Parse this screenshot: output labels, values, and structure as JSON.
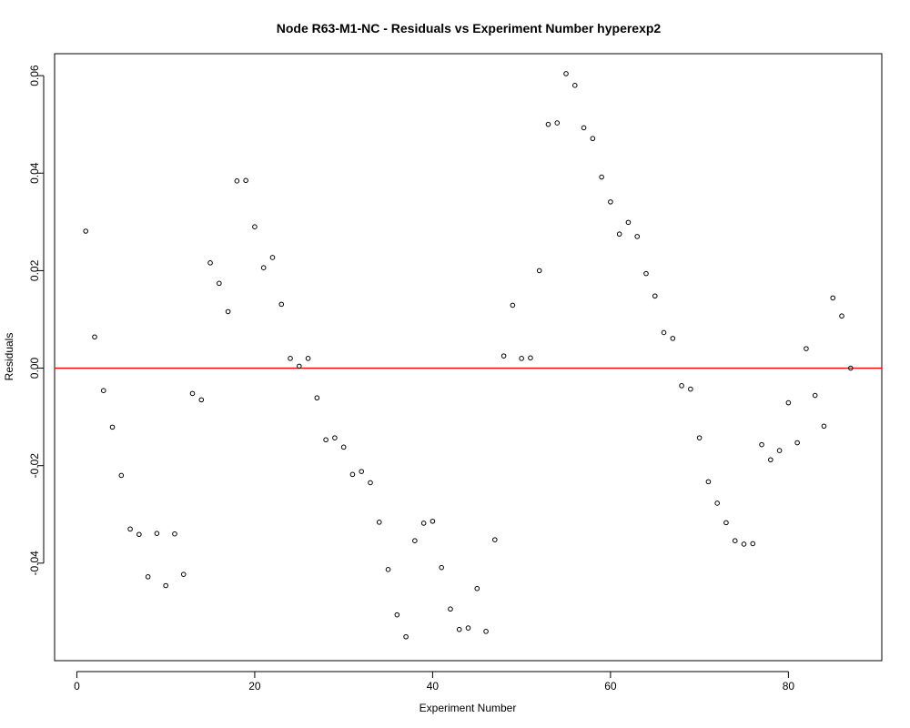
{
  "chart_data": {
    "type": "scatter",
    "title": "Node R63-M1-NC - Residuals vs Experiment Number hyperexp2",
    "xlabel": "Experiment Number",
    "ylabel": "Residuals",
    "xlim": [
      -2.5,
      90.5
    ],
    "ylim": [
      -0.06,
      0.0645
    ],
    "xticks": [
      0,
      20,
      40,
      60,
      80
    ],
    "yticks": [
      -0.04,
      -0.02,
      0.0,
      0.02,
      0.04,
      0.06
    ],
    "xtick_labels": [
      "0",
      "20",
      "40",
      "60",
      "80"
    ],
    "ytick_labels": [
      "-0.04",
      "-0.02",
      "0.00",
      "0.02",
      "0.04",
      "0.06"
    ],
    "grid": false,
    "legend": "none",
    "reference_line": {
      "y": 0,
      "color": "#ff0000"
    },
    "point_color": "#000000",
    "x": [
      1,
      2,
      3,
      4,
      5,
      6,
      7,
      8,
      9,
      10,
      11,
      12,
      13,
      14,
      15,
      16,
      17,
      18,
      19,
      20,
      21,
      22,
      23,
      24,
      25,
      26,
      27,
      28,
      29,
      30,
      31,
      32,
      33,
      34,
      35,
      36,
      37,
      38,
      39,
      40,
      41,
      42,
      43,
      44,
      45,
      46,
      47,
      48,
      49,
      50,
      51,
      52,
      53,
      54,
      55,
      56,
      57,
      58,
      59,
      60,
      61,
      62,
      63,
      64,
      65,
      66,
      67,
      68,
      69,
      70,
      71,
      72,
      73,
      74,
      75,
      76,
      77,
      78,
      79,
      80,
      81,
      82,
      83,
      84,
      85,
      86,
      87
    ],
    "y": [
      0.0281,
      0.0064,
      -0.0046,
      -0.0121,
      -0.022,
      -0.033,
      -0.0341,
      -0.0428,
      -0.0339,
      -0.0446,
      -0.034,
      -0.0423,
      -0.0052,
      -0.0065,
      0.0216,
      0.0174,
      0.0116,
      0.0384,
      0.0385,
      0.029,
      0.0206,
      0.0227,
      0.0131,
      0.002,
      0.0004,
      0.002,
      -0.0061,
      -0.0147,
      -0.0143,
      -0.0162,
      -0.0218,
      -0.0212,
      -0.0235,
      -0.0316,
      -0.0413,
      -0.0506,
      -0.0551,
      -0.0354,
      -0.0318,
      -0.0314,
      -0.0409,
      -0.0494,
      -0.0536,
      -0.0533,
      -0.0452,
      -0.054,
      -0.0352,
      0.0025,
      0.0129,
      0.002,
      0.0021,
      0.02,
      0.05,
      0.0503,
      0.0604,
      0.058,
      0.0493,
      0.0471,
      0.0392,
      0.0341,
      0.0275,
      0.0299,
      0.027,
      0.0194,
      0.0148,
      0.0073,
      0.0061,
      -0.0036,
      -0.0043,
      -0.0143,
      -0.0233,
      -0.0277,
      -0.0317,
      -0.0354,
      -0.0361,
      -0.036,
      -0.0157,
      -0.0188,
      -0.0169,
      -0.0071,
      -0.0153,
      0.004,
      -0.0056,
      -0.0119,
      0.0144,
      0.0107,
      0.0
    ]
  }
}
